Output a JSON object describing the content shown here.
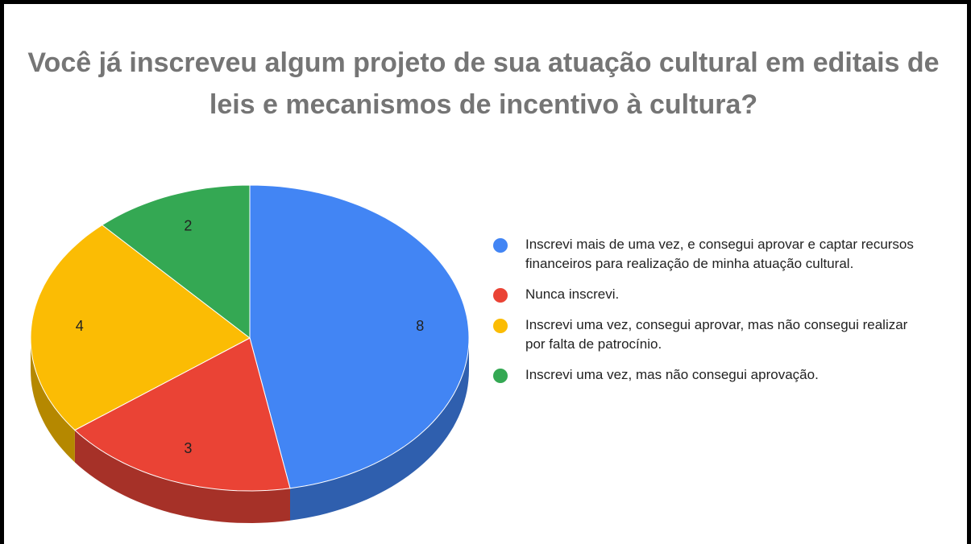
{
  "chart_data": {
    "type": "pie3d",
    "title": "Você já inscreveu algum projeto de sua atuação cultural em editais de leis e mecanismos de incentivo à cultura?",
    "categories": [
      "Inscrevi mais de uma vez, e consegui aprovar e captar recursos financeiros para realização de minha atuação cultural.",
      "Nunca inscrevi.",
      "Inscrevi uma vez, consegui aprovar, mas não consegui realizar por falta de patrocínio.",
      "Inscrevi uma vez, mas não consegui aprovação."
    ],
    "values": [
      8,
      3,
      4,
      2
    ],
    "colors": [
      "#4285f4",
      "#ea4335",
      "#fbbc04",
      "#34a853"
    ],
    "side_colors": [
      "#2f5fae",
      "#a63128",
      "#b58800",
      "#257a3c"
    ],
    "legend": "right"
  }
}
